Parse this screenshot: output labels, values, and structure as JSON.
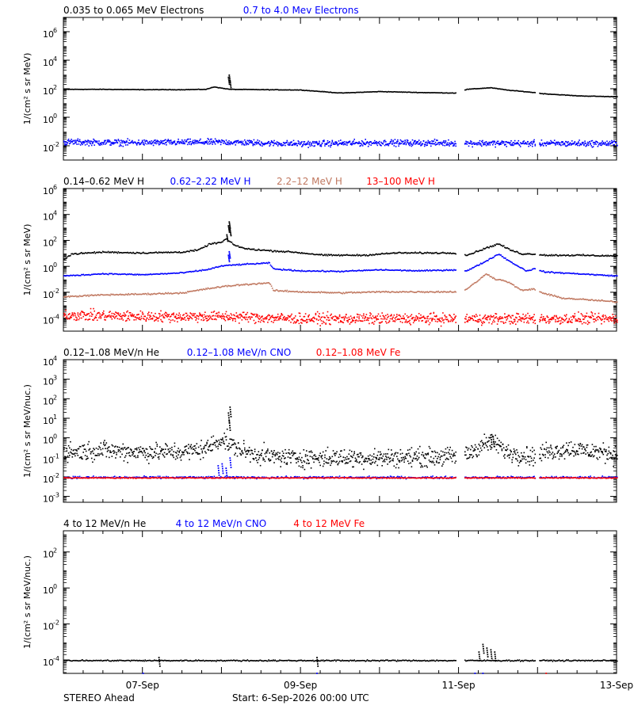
{
  "footer": {
    "spacecraft": "STEREO Ahead",
    "start_label": "Start:  6-Sep-2026 00:00 UTC"
  },
  "chart_data": [
    {
      "type": "scatter",
      "panel": "electrons",
      "title": "",
      "ylabel": "1/(cm² s sr MeV)",
      "yscale": "log",
      "ylim": [
        0.001,
        10000000
      ],
      "xlim": [
        0.0,
        7.0
      ],
      "x_unit": "days since 6-Sep-2026 00:00 UTC",
      "data_gaps": [
        [
          4.97,
          5.07
        ],
        [
          5.97,
          6.01
        ]
      ],
      "yticks": [
        {
          "v": 0.01,
          "label": "10",
          "exp": "-2"
        },
        {
          "v": 1,
          "label": "10",
          "exp": "0"
        },
        {
          "v": 100,
          "label": "10",
          "exp": "2"
        },
        {
          "v": 10000,
          "label": "10",
          "exp": "4"
        },
        {
          "v": 1000000,
          "label": "10",
          "exp": "6"
        }
      ],
      "series": [
        {
          "name": "0.035 to 0.065 MeV Electrons",
          "color": "#000000",
          "scatter": 0.015,
          "points": [
            [
              0.0,
              100
            ],
            [
              0.5,
              100
            ],
            [
              1.0,
              95
            ],
            [
              1.5,
              95
            ],
            [
              1.8,
              100
            ],
            [
              1.9,
              150
            ],
            [
              2.0,
              120
            ],
            [
              2.1,
              100
            ],
            [
              2.5,
              95
            ],
            [
              3.0,
              90
            ],
            [
              3.5,
              55
            ],
            [
              4.0,
              70
            ],
            [
              4.5,
              60
            ],
            [
              4.95,
              55
            ],
            [
              5.1,
              100
            ],
            [
              5.4,
              130
            ],
            [
              5.6,
              90
            ],
            [
              5.95,
              60
            ],
            [
              6.05,
              50
            ],
            [
              6.5,
              35
            ],
            [
              7.0,
              30
            ]
          ],
          "spikes": [
            [
              2.08,
              700
            ],
            [
              2.09,
              1000
            ],
            [
              2.1,
              400
            ]
          ]
        },
        {
          "name": "0.7 to 4.0 Mev Electrons",
          "color": "#0000ff",
          "scatter": 0.18,
          "points": [
            [
              0.0,
              0.02
            ],
            [
              1.0,
              0.018
            ],
            [
              2.0,
              0.02
            ],
            [
              3.0,
              0.015
            ],
            [
              4.0,
              0.018
            ],
            [
              5.0,
              0.017
            ],
            [
              6.0,
              0.016
            ],
            [
              7.0,
              0.016
            ]
          ]
        }
      ]
    },
    {
      "type": "scatter",
      "panel": "protons",
      "title": "",
      "ylabel": "1/(cm² s sr MeV)",
      "yscale": "log",
      "ylim": [
        1e-05,
        1000000
      ],
      "xlim": [
        0.0,
        7.0
      ],
      "x_unit": "days since 6-Sep-2026 00:00 UTC",
      "data_gaps": [
        [
          4.97,
          5.07
        ],
        [
          5.97,
          6.01
        ]
      ],
      "yticks": [
        {
          "v": 0.0001,
          "label": "10",
          "exp": "-4"
        },
        {
          "v": 0.01,
          "label": "10",
          "exp": "-2"
        },
        {
          "v": 1,
          "label": "10",
          "exp": "0"
        },
        {
          "v": 100,
          "label": "10",
          "exp": "2"
        },
        {
          "v": 10000,
          "label": "10",
          "exp": "4"
        },
        {
          "v": 1000000,
          "label": "10",
          "exp": "6"
        }
      ],
      "series": [
        {
          "name": "0.14–0.62 MeV H",
          "color": "#000000",
          "scatter": 0.05,
          "points": [
            [
              0.0,
              4
            ],
            [
              0.1,
              10
            ],
            [
              0.5,
              14
            ],
            [
              1.0,
              12
            ],
            [
              1.5,
              14
            ],
            [
              1.7,
              20
            ],
            [
              1.85,
              60
            ],
            [
              2.0,
              80
            ],
            [
              2.05,
              150
            ],
            [
              2.15,
              50
            ],
            [
              2.3,
              25
            ],
            [
              2.6,
              18
            ],
            [
              2.9,
              14
            ],
            [
              3.3,
              8
            ],
            [
              3.8,
              8
            ],
            [
              4.2,
              12
            ],
            [
              4.6,
              12
            ],
            [
              4.95,
              12
            ],
            [
              5.1,
              8
            ],
            [
              5.35,
              30
            ],
            [
              5.5,
              60
            ],
            [
              5.65,
              20
            ],
            [
              5.8,
              10
            ],
            [
              5.95,
              10
            ],
            [
              6.1,
              8
            ],
            [
              6.5,
              8
            ],
            [
              7.0,
              7
            ]
          ],
          "spikes": [
            [
              2.08,
              1500
            ],
            [
              2.09,
              3000
            ],
            [
              2.1,
              800
            ],
            [
              2.06,
              300
            ]
          ]
        },
        {
          "name": "0.62–2.22 MeV H",
          "color": "#0000ff",
          "scatter": 0.04,
          "points": [
            [
              0.0,
              0.2
            ],
            [
              0.5,
              0.3
            ],
            [
              1.0,
              0.25
            ],
            [
              1.5,
              0.35
            ],
            [
              1.8,
              0.6
            ],
            [
              2.0,
              1.2
            ],
            [
              2.2,
              1.5
            ],
            [
              2.6,
              2.0
            ],
            [
              2.65,
              0.7
            ],
            [
              3.0,
              0.5
            ],
            [
              3.5,
              0.45
            ],
            [
              4.0,
              0.6
            ],
            [
              4.5,
              0.5
            ],
            [
              4.95,
              0.6
            ],
            [
              5.1,
              0.5
            ],
            [
              5.35,
              3
            ],
            [
              5.5,
              10
            ],
            [
              5.65,
              2.5
            ],
            [
              5.85,
              0.5
            ],
            [
              5.95,
              0.7
            ],
            [
              6.1,
              0.4
            ],
            [
              6.5,
              0.3
            ],
            [
              7.0,
              0.2
            ]
          ],
          "spikes": [
            [
              2.08,
              8
            ],
            [
              2.09,
              15
            ]
          ]
        },
        {
          "name": "2.2–12 MeV H",
          "color": "#c07860",
          "scatter": 0.05,
          "points": [
            [
              0.0,
              0.005
            ],
            [
              0.5,
              0.007
            ],
            [
              1.0,
              0.008
            ],
            [
              1.5,
              0.01
            ],
            [
              1.8,
              0.02
            ],
            [
              2.0,
              0.03
            ],
            [
              2.2,
              0.04
            ],
            [
              2.6,
              0.06
            ],
            [
              2.65,
              0.015
            ],
            [
              3.0,
              0.012
            ],
            [
              3.5,
              0.01
            ],
            [
              4.0,
              0.012
            ],
            [
              4.5,
              0.012
            ],
            [
              4.95,
              0.012
            ],
            [
              5.1,
              0.02
            ],
            [
              5.25,
              0.1
            ],
            [
              5.35,
              0.3
            ],
            [
              5.45,
              0.12
            ],
            [
              5.6,
              0.08
            ],
            [
              5.8,
              0.015
            ],
            [
              5.95,
              0.02
            ],
            [
              6.05,
              0.01
            ],
            [
              6.3,
              0.004
            ],
            [
              6.6,
              0.003
            ],
            [
              7.0,
              0.002
            ]
          ]
        },
        {
          "name": "13–100 MeV H",
          "color": "#ff0000",
          "scatter": 0.35,
          "points": [
            [
              0.0,
              0.0002
            ],
            [
              1.0,
              0.00015
            ],
            [
              2.0,
              0.00015
            ],
            [
              3.0,
              0.0001
            ],
            [
              4.0,
              0.0001
            ],
            [
              5.0,
              0.0001
            ],
            [
              6.0,
              0.0001
            ],
            [
              7.0,
              0.0001
            ]
          ]
        }
      ]
    },
    {
      "type": "scatter",
      "panel": "he-cno-fe-low",
      "title": "",
      "ylabel": "1/(cm² s sr MeV/nuc.)",
      "yscale": "log",
      "ylim": [
        0.0005,
        10000
      ],
      "xlim": [
        0.0,
        7.0
      ],
      "x_unit": "days since 6-Sep-2026 00:00 UTC",
      "data_gaps": [
        [
          4.97,
          5.07
        ],
        [
          5.97,
          6.01
        ]
      ],
      "yticks": [
        {
          "v": 0.001,
          "label": "10",
          "exp": "-3"
        },
        {
          "v": 0.01,
          "label": "10",
          "exp": "-2"
        },
        {
          "v": 0.1,
          "label": "10",
          "exp": "-1"
        },
        {
          "v": 1,
          "label": "10",
          "exp": "0"
        },
        {
          "v": 10,
          "label": "10",
          "exp": "1"
        },
        {
          "v": 100,
          "label": "10",
          "exp": "2"
        },
        {
          "v": 1000,
          "label": "10",
          "exp": "3"
        },
        {
          "v": 10000,
          "label": "10",
          "exp": "4"
        }
      ],
      "series": [
        {
          "name": "0.12–1.08 MeV/n He",
          "color": "#000000",
          "scatter": 0.4,
          "points": [
            [
              0.0,
              0.2
            ],
            [
              0.5,
              0.25
            ],
            [
              1.0,
              0.2
            ],
            [
              1.5,
              0.2
            ],
            [
              1.8,
              0.3
            ],
            [
              2.0,
              1.0
            ],
            [
              2.1,
              0.5
            ],
            [
              2.3,
              0.2
            ],
            [
              2.6,
              0.12
            ],
            [
              3.0,
              0.1
            ],
            [
              4.0,
              0.1
            ],
            [
              4.95,
              0.12
            ],
            [
              5.1,
              0.15
            ],
            [
              5.3,
              0.5
            ],
            [
              5.45,
              0.6
            ],
            [
              5.6,
              0.2
            ],
            [
              5.95,
              0.12
            ],
            [
              6.1,
              0.2
            ],
            [
              6.4,
              0.3
            ],
            [
              7.0,
              0.15
            ]
          ],
          "spikes": [
            [
              2.08,
              20
            ],
            [
              2.09,
              8
            ],
            [
              2.1,
              40
            ],
            [
              5.4,
              1.5
            ],
            [
              5.43,
              1.2
            ]
          ]
        },
        {
          "name": "0.12–1.08 MeV/n CNO",
          "color": "#0000ff",
          "scatter": 0.05,
          "points": [
            [
              0.0,
              0.01
            ],
            [
              7.0,
              0.01
            ]
          ],
          "spikes": [
            [
              1.95,
              0.04
            ],
            [
              2.0,
              0.05
            ],
            [
              2.05,
              0.03
            ],
            [
              2.1,
              0.1
            ]
          ]
        },
        {
          "name": "0.12–1.08 MeV Fe",
          "color": "#ff0000",
          "scatter": 0.02,
          "points": [
            [
              0.0,
              0.0095
            ],
            [
              7.0,
              0.0095
            ]
          ]
        }
      ]
    },
    {
      "type": "scatter",
      "panel": "he-cno-fe-high",
      "title": "",
      "ylabel": "1/(cm² s sr MeV/nuc.)",
      "yscale": "log",
      "ylim": [
        1.8e-05,
        1500
      ],
      "xlim": [
        0.0,
        7.0
      ],
      "x_unit": "days since 6-Sep-2026 00:00 UTC",
      "data_gaps": [
        [
          4.97,
          5.07
        ],
        [
          5.97,
          6.01
        ]
      ],
      "yticks": [
        {
          "v": 0.0001,
          "label": "10",
          "exp": "-4"
        },
        {
          "v": 0.01,
          "label": "10",
          "exp": "-2"
        },
        {
          "v": 1,
          "label": "10",
          "exp": "0"
        },
        {
          "v": 100,
          "label": "10",
          "exp": "2"
        }
      ],
      "xticks": [
        {
          "v": 1.0,
          "label": "07-Sep"
        },
        {
          "v": 3.0,
          "label": "09-Sep"
        },
        {
          "v": 5.0,
          "label": "11-Sep"
        },
        {
          "v": 7.0,
          "label": "13-Sep"
        }
      ],
      "series": [
        {
          "name": "4 to 12 MeV/n He",
          "color": "#000000",
          "scatter": 0.03,
          "points": [
            [
              0.0,
              0.0001
            ],
            [
              7.0,
              0.0001
            ]
          ],
          "spikes": [
            [
              5.25,
              0.0003
            ],
            [
              5.3,
              0.0008
            ],
            [
              5.35,
              0.0005
            ],
            [
              5.4,
              0.0004
            ],
            [
              5.45,
              0.0003
            ],
            [
              3.2,
              0.00015
            ],
            [
              1.2,
              0.00015
            ]
          ]
        },
        {
          "name": "4 to 12 MeV/n CNO",
          "color": "#0000ff",
          "scatter": 0.0,
          "points": [],
          "spikes": [
            [
              1.0,
              2e-05
            ],
            [
              3.2,
              2e-05
            ],
            [
              5.2,
              2e-05
            ],
            [
              5.3,
              2e-05
            ]
          ]
        },
        {
          "name": "4 to 12 MeV Fe",
          "color": "#ff0000",
          "scatter": 0.0,
          "points": [],
          "spikes": [
            [
              6.1,
              2e-05
            ]
          ]
        }
      ]
    }
  ]
}
